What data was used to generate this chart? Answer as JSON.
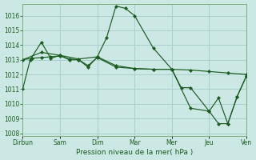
{
  "bg_color": "#cce8e4",
  "grid_color": "#a8d0cc",
  "line_color": "#1a5c20",
  "xlabel": "Pression niveau de la mer( hPa )",
  "xtick_labels": [
    "Dirbun",
    "Sam",
    "Dim",
    "Mar",
    "Mer",
    "Jeu",
    "Ven"
  ],
  "xtick_positions": [
    0,
    2,
    4,
    6,
    8,
    10,
    12
  ],
  "ylim": [
    1007.8,
    1016.8
  ],
  "yticks": [
    1008,
    1009,
    1010,
    1011,
    1012,
    1013,
    1014,
    1015,
    1016
  ],
  "series": [
    {
      "x": [
        0,
        0.4,
        1,
        1.5,
        2,
        2.5,
        3,
        3.5,
        4,
        4.5,
        5,
        5.5,
        6,
        7,
        8,
        8.5,
        9,
        10,
        10.5,
        11,
        11.5,
        12
      ],
      "y": [
        1011.0,
        1013.0,
        1014.2,
        1013.1,
        1013.3,
        1013.0,
        1013.0,
        1012.5,
        1013.2,
        1014.5,
        1016.65,
        1016.5,
        1016.0,
        1013.8,
        1012.35,
        1011.1,
        1011.1,
        1009.5,
        1008.65,
        1008.65,
        1010.5,
        1011.9
      ]
    },
    {
      "x": [
        0,
        0.5,
        1,
        1.5,
        2,
        2.5,
        3,
        3.5,
        4,
        5,
        6,
        7,
        8,
        9,
        10,
        11,
        12
      ],
      "y": [
        1013.0,
        1013.1,
        1013.15,
        1013.2,
        1013.25,
        1013.05,
        1013.0,
        1012.6,
        1013.15,
        1012.5,
        1012.4,
        1012.35,
        1012.35,
        1012.3,
        1012.2,
        1012.1,
        1012.0
      ]
    },
    {
      "x": [
        0,
        1,
        2,
        3,
        4,
        5,
        6,
        7,
        8,
        9,
        10,
        10.5,
        11,
        11.5,
        12
      ],
      "y": [
        1013.0,
        1013.5,
        1013.3,
        1013.05,
        1013.2,
        1012.6,
        1012.4,
        1012.35,
        1012.35,
        1009.7,
        1009.5,
        1010.4,
        1008.65,
        1010.5,
        1011.9
      ]
    }
  ]
}
